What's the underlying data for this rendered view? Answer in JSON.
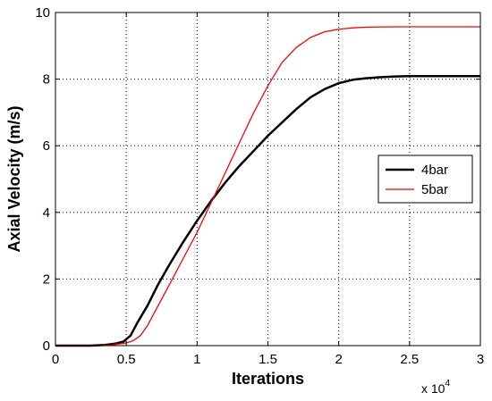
{
  "chart_data": {
    "type": "line",
    "title": "",
    "xlabel": "Iterations",
    "ylabel": "Axial Velocity (m/s)",
    "x_exponent_label": "x 10",
    "x_exponent_power": "4",
    "xlim": [
      0,
      3
    ],
    "ylim": [
      0,
      10
    ],
    "x_ticks": [
      0,
      0.5,
      1,
      1.5,
      2,
      2.5,
      3
    ],
    "x_tick_labels": [
      "0",
      "0.5",
      "1",
      "1.5",
      "2",
      "2.5",
      "3"
    ],
    "y_ticks": [
      0,
      2,
      4,
      6,
      8,
      10
    ],
    "y_tick_labels": [
      "0",
      "2",
      "4",
      "6",
      "8",
      "10"
    ],
    "grid": true,
    "legend_position": "right",
    "series": [
      {
        "name": "4bar",
        "color": "#000000",
        "x": [
          0,
          0.25,
          0.35,
          0.42,
          0.48,
          0.53,
          0.58,
          0.65,
          0.72,
          0.8,
          0.9,
          1.0,
          1.1,
          1.2,
          1.3,
          1.4,
          1.5,
          1.6,
          1.7,
          1.8,
          1.9,
          2.0,
          2.1,
          2.2,
          2.3,
          2.4,
          2.5,
          3.0
        ],
        "y": [
          0,
          0,
          0.02,
          0.06,
          0.12,
          0.3,
          0.7,
          1.2,
          1.8,
          2.4,
          3.1,
          3.75,
          4.35,
          4.9,
          5.4,
          5.85,
          6.3,
          6.7,
          7.1,
          7.45,
          7.7,
          7.88,
          7.98,
          8.03,
          8.06,
          8.08,
          8.09,
          8.09
        ]
      },
      {
        "name": "5bar",
        "color": "#ff0000",
        "x": [
          0,
          0.3,
          0.4,
          0.5,
          0.55,
          0.6,
          0.65,
          0.7,
          0.8,
          0.9,
          1.0,
          1.1,
          1.2,
          1.3,
          1.4,
          1.5,
          1.6,
          1.7,
          1.8,
          1.9,
          2.0,
          2.1,
          2.2,
          2.4,
          2.6,
          3.0
        ],
        "y": [
          0,
          0,
          0.02,
          0.08,
          0.15,
          0.3,
          0.6,
          1.0,
          1.8,
          2.6,
          3.4,
          4.3,
          5.2,
          6.1,
          7.0,
          7.8,
          8.5,
          8.95,
          9.25,
          9.42,
          9.5,
          9.54,
          9.56,
          9.57,
          9.57,
          9.57
        ]
      }
    ]
  }
}
